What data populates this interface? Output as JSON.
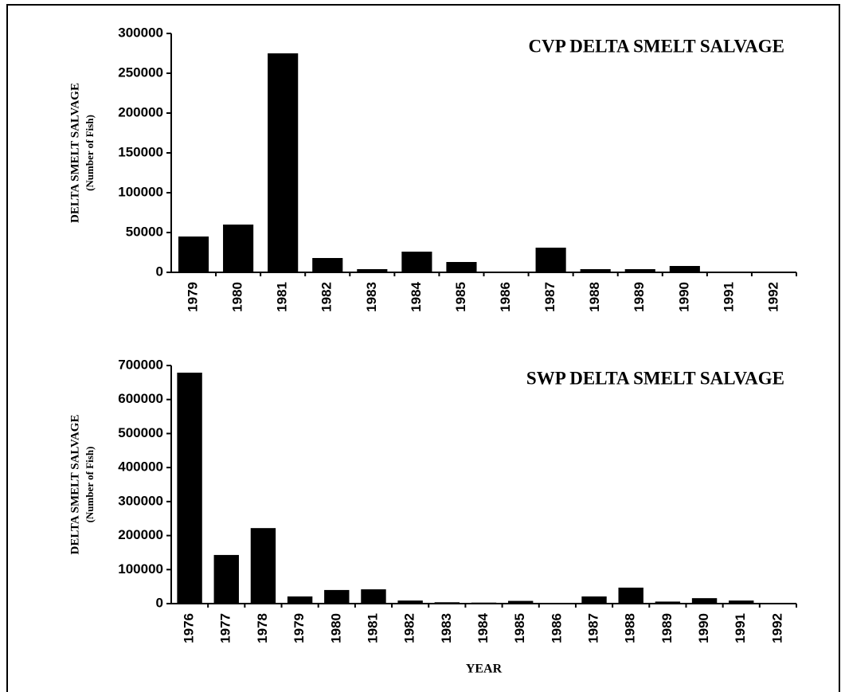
{
  "chart_data": [
    {
      "type": "bar",
      "title": "CVP DELTA SMELT SALVAGE",
      "y_label": "DELTA SMELT SALVAGE",
      "y_sublabel": "(Number of Fish)",
      "categories": [
        "1979",
        "1980",
        "1981",
        "1982",
        "1983",
        "1984",
        "1985",
        "1986",
        "1987",
        "1988",
        "1989",
        "1990",
        "1991",
        "1992"
      ],
      "values": [
        45000,
        60000,
        275000,
        18000,
        4000,
        26000,
        13000,
        1000,
        31000,
        4000,
        4000,
        8000,
        1000,
        500
      ],
      "color": "#000000",
      "ylim": [
        0,
        300000
      ],
      "yticks": [
        0,
        50000,
        100000,
        150000,
        200000,
        250000,
        300000
      ]
    },
    {
      "type": "bar",
      "title": "SWP DELTA SMELT SALVAGE",
      "y_label": "DELTA SMELT SALVAGE",
      "y_sublabel": "(Number of Fish)",
      "x_label": "YEAR",
      "categories": [
        "1976",
        "1977",
        "1978",
        "1979",
        "1980",
        "1981",
        "1982",
        "1983",
        "1984",
        "1985",
        "1986",
        "1987",
        "1988",
        "1989",
        "1990",
        "1991",
        "1992"
      ],
      "values": [
        679000,
        143000,
        222000,
        21000,
        40000,
        42000,
        9000,
        4000,
        3000,
        8000,
        2000,
        21000,
        47000,
        6000,
        16000,
        9000,
        2000
      ],
      "color": "#000000",
      "ylim": [
        0,
        700000
      ],
      "yticks": [
        0,
        100000,
        200000,
        300000,
        400000,
        500000,
        600000,
        700000
      ]
    }
  ]
}
